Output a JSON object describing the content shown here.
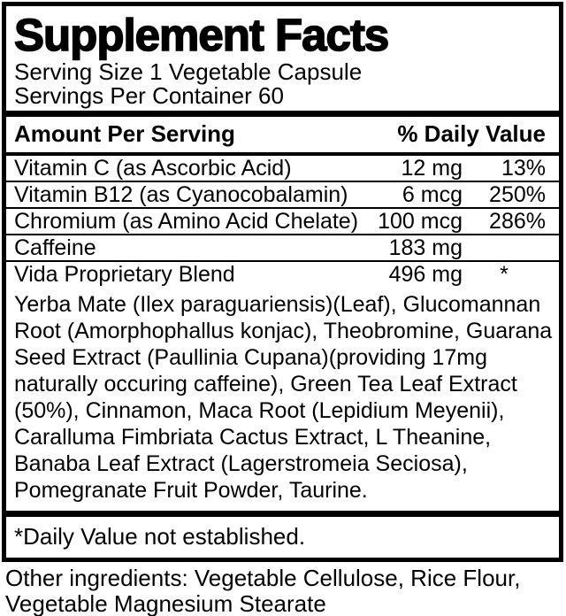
{
  "label": {
    "title": "Supplement Facts",
    "serving_size": "Serving Size 1 Vegetable Capsule",
    "servings_per_container": "Servings Per Container 60",
    "header": {
      "amount_per_serving": "Amount Per Serving",
      "daily_value": "% Daily Value"
    },
    "rows": [
      {
        "name": "Vitamin C (as Ascorbic Acid)",
        "amount": "12 mg",
        "dv": "13%"
      },
      {
        "name": "Vitamin B12 (as Cyanocobalamin)",
        "amount": "6 mcg",
        "dv": "250%"
      },
      {
        "name": "Chromium (as Amino Acid Chelate)",
        "amount": "100 mcg",
        "dv": "286%"
      },
      {
        "name": "Caffeine",
        "amount": "183 mg",
        "dv": ""
      },
      {
        "name": "Vida Proprietary Blend",
        "amount": "496 mg",
        "dv": "*"
      }
    ],
    "blend_description_lines": [
      "Yerba Mate (Ilex paraguariensis)(Leaf), Glucomannan",
      "Root (Amorphophallus konjac), Theobromine, Guarana",
      "Seed Extract (Paullinia Cupana)(providing 17mg",
      "naturally occuring caffeine), Green Tea Leaf Extract",
      "(50%), Cinnamon, Maca Root (Lepidium Meyenii),",
      "Caralluma Fimbriata Cactus Extract, L Theanine,",
      "Banaba Leaf Extract (Lagerstromeia Seciosa),",
      "Pomegranate Fruit Powder, Taurine."
    ],
    "footnote": "*Daily Value not established."
  },
  "other_ingredients_lines": [
    "Other ingredients: Vegetable Cellulose, Rice Flour,",
    "Vegetable Magnesium Stearate"
  ],
  "colors": {
    "text": "#000000",
    "background": "#ffffff"
  }
}
